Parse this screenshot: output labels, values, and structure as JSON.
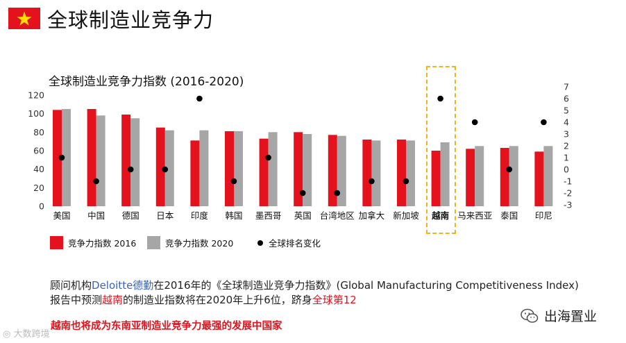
{
  "page": {
    "title": "全球制造业竞争力",
    "flag": {
      "name": "vietnam-flag",
      "bg": "#e3121c",
      "star": "#ffde00"
    }
  },
  "chart_data": {
    "type": "bar",
    "title": "全球制造业竞争力指数 (2016-2020)",
    "categories": [
      "美国",
      "中国",
      "德国",
      "日本",
      "印度",
      "韩国",
      "墨西哥",
      "英国",
      "台湾地区",
      "加拿大",
      "新加坡",
      "越南",
      "马来西亚",
      "泰国",
      "印尼"
    ],
    "highlight_category": "越南",
    "series": [
      {
        "name": "竞争力指数 2016",
        "color": "#e3121c",
        "values": [
          104,
          105,
          99,
          85,
          71,
          81,
          73,
          80,
          77,
          72,
          72,
          60,
          62,
          63,
          59
        ]
      },
      {
        "name": "竞争力指数 2020",
        "color": "#a6a6a6",
        "values": [
          105,
          98,
          95,
          82,
          82,
          81,
          80,
          78,
          76,
          71,
          71,
          69,
          65,
          65,
          65
        ]
      },
      {
        "name": "全球排名变化",
        "type": "scatter",
        "axis": "right",
        "color": "#000000",
        "values": [
          1,
          -1,
          0,
          0,
          6,
          -1,
          1,
          -2,
          -2,
          -1,
          -1,
          6,
          4,
          0,
          4
        ]
      }
    ],
    "y_left": {
      "min": 0,
      "max": 120,
      "ticks": [
        0,
        20,
        40,
        60,
        80,
        100,
        120
      ]
    },
    "y_right": {
      "min": -3,
      "max": 7,
      "ticks": [
        -3,
        -2,
        -1,
        0,
        1,
        2,
        3,
        4,
        5,
        6,
        7
      ]
    }
  },
  "text": {
    "p1_a": "顾问机构",
    "p1_deloitte": "Deloitte德勤",
    "p1_b": "在2016年的《全球制造业竞争力指数》(Global Manufacturing Competitiveness Index)",
    "p2_a": "报告中预测",
    "p2_vn": "越南",
    "p2_b": "的制造业指数将在2020年上升6位，跻身",
    "p2_rank": "全球第12",
    "conclusion": "越南也将成为东南亚制造业竞争力最强的发展中国家"
  },
  "watermarks": {
    "right": "出海置业",
    "left": "大数跨境"
  }
}
